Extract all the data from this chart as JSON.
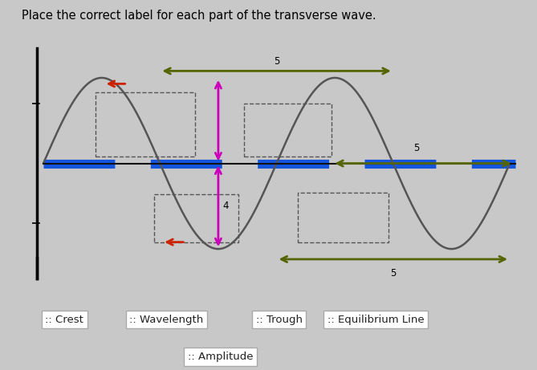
{
  "title": "Place the correct label for each part of the transverse wave.",
  "title_fontsize": 10.5,
  "bg_color": "#c8c8c8",
  "wave_color": "#555555",
  "equil_blue": "#1555dd",
  "equil_black": "#111111",
  "red": "#cc2200",
  "olive": "#556600",
  "magenta": "#cc00bb",
  "dashed_color": "#555555",
  "wave_periods": 2,
  "button_labels_row1": [
    ":: Crest",
    ":: Wavelength",
    ":: Trough",
    ":: Equilibrium Line"
  ],
  "button_label_row2": ":: Amplitude",
  "num5_top": "5",
  "num5_mid": "5",
  "num5_bot": "5",
  "num4": "4"
}
